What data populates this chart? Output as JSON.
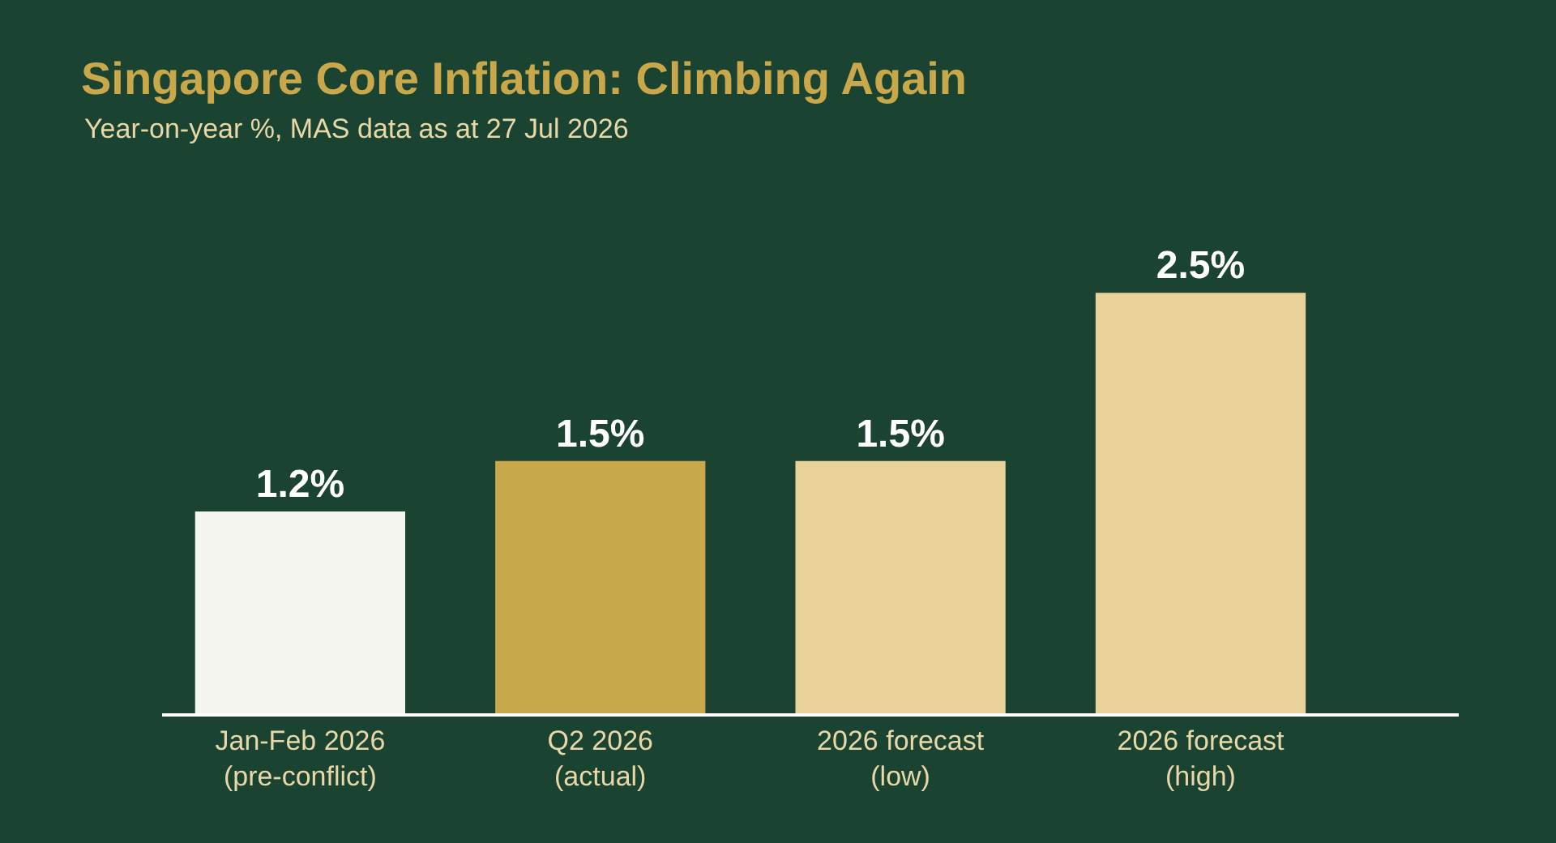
{
  "chart_data": {
    "type": "bar",
    "title": "Singapore Core Inflation: Climbing Again",
    "subtitle": "Year-on-year %, MAS data as at 27 Jul 2026",
    "categories": [
      "Jan-Feb 2026\n(pre-conflict)",
      "Q2 2026\n(actual)",
      "2026 forecast\n(low)",
      "2026 forecast\n(high)"
    ],
    "values": [
      1.2,
      1.5,
      1.5,
      2.5
    ],
    "colors": [
      "#f5f5f0",
      "#c9a84c",
      "#e8d299",
      "#e8d299"
    ],
    "value_labels": [
      "1.2%",
      "1.5%",
      "1.5%",
      "2.5%"
    ],
    "grid": false,
    "tick_labels": "x"
  }
}
